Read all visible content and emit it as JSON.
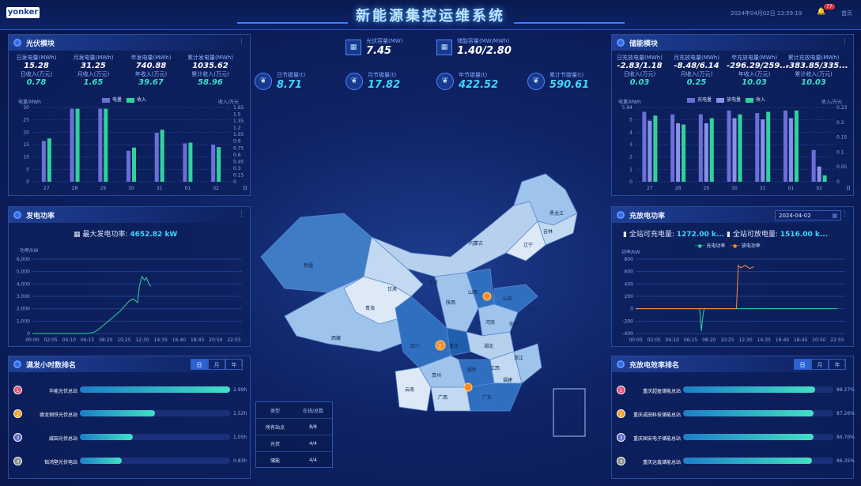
{
  "header": {
    "logo": "yonker",
    "title": "新能源集控运维系统",
    "datetime": "2024年04月02日 13:59:19",
    "notification_count": "77",
    "home_label": "首页"
  },
  "center_kpis": [
    {
      "label": "光伏容量(MW)",
      "value": "7.45",
      "icon": "solar-panel-icon"
    },
    {
      "label": "储能容量(MW/MWh)",
      "value": "1.40/2.80",
      "icon": "battery-icon"
    },
    {
      "label": "日节碳量(t)",
      "value": "8.71",
      "icon": "leaf-icon"
    },
    {
      "label": "月节碳量(t)",
      "value": "17.82",
      "icon": "leaf-icon"
    },
    {
      "label": "年节碳量(t)",
      "value": "422.52",
      "icon": "leaf-icon"
    },
    {
      "label": "累计节碳量(t)",
      "value": "590.61",
      "icon": "leaf-icon"
    }
  ],
  "pv_module": {
    "title": "光伏模块",
    "stats_row1": [
      {
        "label": "日发电量(MWh)",
        "value": "15.28"
      },
      {
        "label": "月发电量(MWh)",
        "value": "31.25"
      },
      {
        "label": "年发电量(MWh)",
        "value": "740.88"
      },
      {
        "label": "累计发电量(MWh)",
        "value": "1035.62"
      }
    ],
    "stats_row2": [
      {
        "label": "日收入(万元)",
        "value": "0.78"
      },
      {
        "label": "月收入(万元)",
        "value": "1.65"
      },
      {
        "label": "年收入(万元)",
        "value": "39.67"
      },
      {
        "label": "累计收入(万元)",
        "value": "58.96"
      }
    ]
  },
  "pv_chart": {
    "chart_data": {
      "type": "bar",
      "categories": [
        "27",
        "28",
        "29",
        "30",
        "31",
        "01",
        "02"
      ],
      "series": [
        {
          "name": "电量",
          "values": [
            16.5,
            29.5,
            29.5,
            12.5,
            19.8,
            15.5,
            15
          ],
          "color": "#6b6fd6"
        },
        {
          "name": "收入",
          "values": [
            17.5,
            29.5,
            29.5,
            13.8,
            21,
            15.8,
            14
          ],
          "color": "#2fd39a"
        }
      ],
      "ylabel": "电量/MWh",
      "y2label": "收入/万元",
      "xlabel": "日",
      "ylim": [
        0,
        30
      ],
      "yticks": [
        "0",
        "5",
        "10",
        "15",
        "20",
        "25",
        "30"
      ],
      "y2ticks": [
        "0",
        "0.15",
        "0.3",
        "0.45",
        "0.6",
        "0.75",
        "0.9",
        "1.05",
        "1.2",
        "1.35",
        "1.5",
        "1.65"
      ]
    }
  },
  "storage_module": {
    "title": "储能模块",
    "stats_row1": [
      {
        "label": "日充放电量(MWh)",
        "value": "-2.83/1.18"
      },
      {
        "label": "月充放电量(MWh)",
        "value": "-8.48/6.14"
      },
      {
        "label": "年充放电量(MWh)",
        "value": "-296.29/259..."
      },
      {
        "label": "累计充放电量(MWh)",
        "value": "-383.85/335..."
      }
    ],
    "stats_row2": [
      {
        "label": "日收入(万元)",
        "value": "0.03"
      },
      {
        "label": "月收入(万元)",
        "value": "0.25"
      },
      {
        "label": "年收入(万元)",
        "value": "10.03"
      },
      {
        "label": "累计收入(万元)",
        "value": "10.03"
      }
    ]
  },
  "storage_chart": {
    "chart_data": {
      "type": "bar",
      "categories": [
        "27",
        "28",
        "29",
        "30",
        "31",
        "01",
        "02"
      ],
      "series": [
        {
          "name": "充电量",
          "values": [
            5.5,
            5.3,
            5.3,
            5.6,
            5.4,
            5.6,
            2.5
          ],
          "color": "#6b6fd6"
        },
        {
          "name": "放电量",
          "values": [
            4.8,
            4.6,
            4.6,
            5,
            4.9,
            5,
            1.2
          ],
          "color": "#8a8fe8"
        },
        {
          "name": "收入",
          "values": [
            5.2,
            4.5,
            5.0,
            5.3,
            5.5,
            5.6,
            0.5
          ],
          "color": "#2fd39a"
        }
      ],
      "ylabel": "电量/MWh",
      "y2label": "收入/万元",
      "xlabel": "日",
      "ylim": [
        0,
        5.84
      ],
      "yticks": [
        "0",
        "1",
        "2",
        "3",
        "4",
        "5",
        "5.84"
      ],
      "y2ticks": [
        "0",
        "0.05",
        "0.1",
        "0.15",
        "0.2",
        "0.23"
      ]
    }
  },
  "pv_power": {
    "title": "发电功率",
    "max_label": "最大发电功率:",
    "max_value": "4652.82 kW",
    "chart_data": {
      "type": "line",
      "ylabel": "功率/kW",
      "ylim": [
        0,
        6000
      ],
      "yticks": [
        "0",
        "1,000",
        "2,000",
        "3,000",
        "4,000",
        "5,000",
        "6,000"
      ],
      "xticks": [
        "00:00",
        "02:05",
        "04:10",
        "06:15",
        "08:20",
        "10:25",
        "12:30",
        "14:35",
        "16:40",
        "18:45",
        "20:50",
        "22:55"
      ],
      "series": [
        {
          "name": "发电功率",
          "x": [
            0,
            6.3,
            7,
            7.5,
            8,
            8.5,
            9,
            9.5,
            10,
            10.5,
            11,
            11.5,
            12,
            12.2,
            12.5,
            12.8,
            13,
            13.3,
            13.5
          ],
          "y": [
            0,
            0,
            100,
            300,
            600,
            900,
            1200,
            1500,
            1800,
            2200,
            2600,
            2800,
            2500,
            3800,
            4600,
            4300,
            4500,
            4000,
            3800
          ]
        }
      ]
    }
  },
  "charge_power": {
    "title": "充放电功率",
    "date": "2024-04-02",
    "charge_label": "全站可充电量:",
    "charge_value": "1272.00 k...",
    "discharge_label": "全站可放电量:",
    "discharge_value": "1516.00 k...",
    "chart_data": {
      "type": "line",
      "ylabel": "功率/kW",
      "ylim": [
        -400,
        800
      ],
      "yticks": [
        "-400",
        "-200",
        "0",
        "200",
        "400",
        "600",
        "800"
      ],
      "xticks": [
        "00:00",
        "02:05",
        "04:10",
        "06:15",
        "08:20",
        "10:25",
        "12:30",
        "14:35",
        "16:40",
        "18:45",
        "20:50",
        "22:55"
      ],
      "series": [
        {
          "name": "充电功率",
          "color": "#2fd39a",
          "x": [
            0,
            7.3,
            7.5,
            7.6,
            7.8,
            8,
            23
          ],
          "y": [
            0,
            0,
            -360,
            -200,
            0,
            0,
            0
          ]
        },
        {
          "name": "放电功率",
          "color": "#ff8a2b",
          "x": [
            0,
            11.5,
            11.7,
            12,
            12.5,
            13,
            13.5
          ],
          "y": [
            0,
            0,
            700,
            660,
            700,
            650,
            680
          ]
        }
      ]
    }
  },
  "pv_ranking": {
    "title": "满发小时数排名",
    "tabs": [
      "日",
      "月",
      "年"
    ],
    "rows": [
      {
        "rank": "1",
        "name": "华能光伏总站",
        "value": "2.99h",
        "ratio": 1.0,
        "color": "#e0507a"
      },
      {
        "rank": "2",
        "name": "德龙钢铁光伏总站",
        "value": "1.52h",
        "ratio": 0.5,
        "color": "#f0a020"
      },
      {
        "rank": "3",
        "name": "威田光伏总站",
        "value": "1.05h",
        "ratio": 0.35,
        "color": "#5a66c8"
      },
      {
        "rank": "4",
        "name": "韬鸿壁光伏电站",
        "value": "0.83h",
        "ratio": 0.28,
        "color": "#8a8a8a"
      }
    ]
  },
  "storage_ranking": {
    "title": "充放电效率排名",
    "tabs": [
      "日",
      "月",
      "年"
    ],
    "rows": [
      {
        "rank": "1",
        "name": "重庆超盈储能总站",
        "value": "88.27%",
        "ratio": 0.88,
        "color": "#e0507a"
      },
      {
        "rank": "2",
        "name": "重庆成田科技储能总站",
        "value": "87.26%",
        "ratio": 0.87,
        "color": "#f0a020"
      },
      {
        "rank": "3",
        "name": "重庆国安电子储能总站",
        "value": "86.70%",
        "ratio": 0.867,
        "color": "#5a66c8"
      },
      {
        "rank": "4",
        "name": "重庆运鑫储能总站",
        "value": "86.35%",
        "ratio": 0.86,
        "color": "#8a8a8a"
      }
    ]
  },
  "station_table": {
    "headers": [
      "类型",
      "在线/总数"
    ],
    "rows": [
      [
        "所有站点",
        "8/8"
      ],
      [
        "光伏",
        "4/4"
      ],
      [
        "储能",
        "4/4"
      ]
    ]
  },
  "map": {
    "provinces": [
      "新疆",
      "西藏",
      "青海",
      "甘肃",
      "内蒙古",
      "黑龙江",
      "吉林",
      "辽宁",
      "山西",
      "陕西",
      "四川",
      "重庆",
      "湖北",
      "湖南",
      "河南",
      "山东",
      "江苏",
      "安徽",
      "浙江",
      "江西",
      "福建",
      "贵州",
      "云南",
      "广西",
      "广东",
      "宁夏"
    ],
    "cluster_count": "2"
  }
}
